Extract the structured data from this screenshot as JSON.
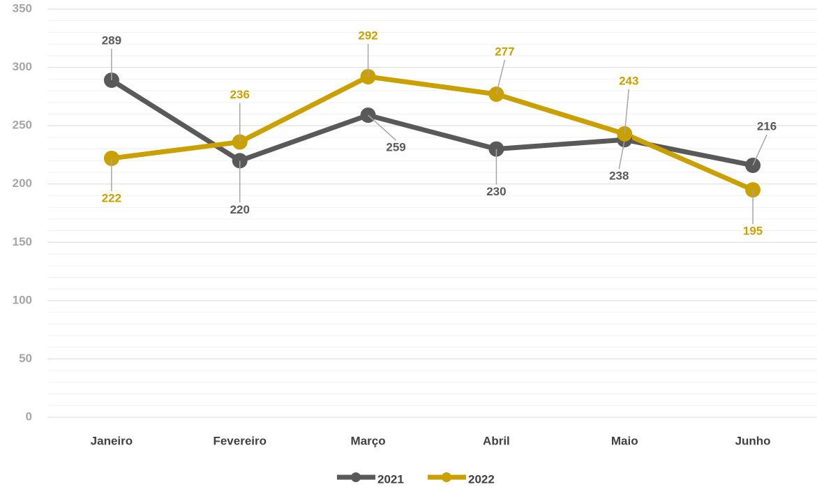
{
  "chart_data": {
    "type": "line",
    "categories": [
      "Janeiro",
      "Fevereiro",
      "Março",
      "Abril",
      "Maio",
      "Junho"
    ],
    "series": [
      {
        "name": "2021",
        "color": "#595959",
        "values": [
          289,
          220,
          259,
          230,
          238,
          216
        ]
      },
      {
        "name": "2022",
        "color": "#c9a000",
        "values": [
          222,
          236,
          292,
          277,
          243,
          195
        ]
      }
    ],
    "ylim": [
      0,
      350
    ],
    "yticks": [
      0,
      50,
      100,
      150,
      200,
      250,
      300,
      350
    ],
    "minor_yticks": [
      10,
      20,
      30,
      40,
      60,
      70,
      80,
      90,
      110,
      120,
      130,
      140,
      160,
      170,
      180,
      190,
      210,
      220,
      230,
      240,
      260,
      270,
      280,
      290,
      310,
      320,
      330,
      340
    ],
    "grid": true,
    "legend": "bottom"
  }
}
